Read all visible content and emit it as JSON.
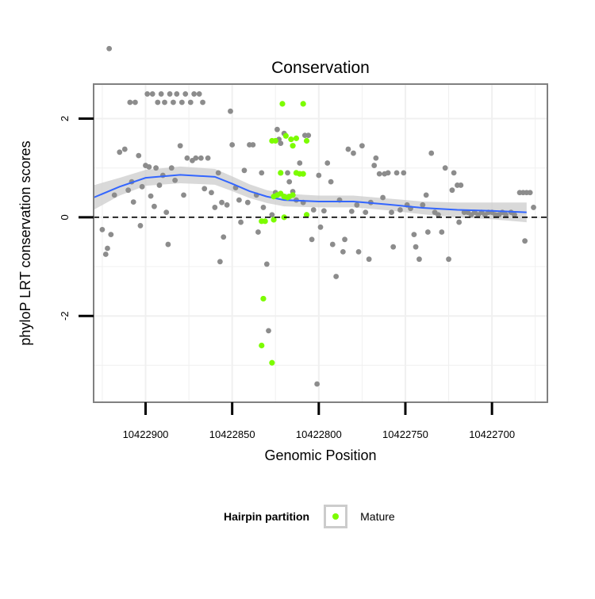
{
  "chart_data": {
    "type": "scatter",
    "title": "Conservation",
    "xlabel": "Genomic Position",
    "ylabel": "phyloP LRT conservation scores",
    "x_reversed": true,
    "xlim": [
      10422668,
      10422930
    ],
    "ylim": [
      -3.75,
      2.7
    ],
    "xticks": [
      10422900,
      10422850,
      10422800,
      10422750,
      10422700
    ],
    "xtick_labels": [
      "10422900",
      "10422850",
      "10422800",
      "10422750",
      "10422700"
    ],
    "yticks": [
      2,
      0,
      -2
    ],
    "ytick_labels": [
      "2",
      "0",
      "-2"
    ],
    "reference_line": {
      "y": 0,
      "style": "dashed"
    },
    "legend": {
      "title": "Hairpin partition",
      "entries": [
        {
          "label": "Mature",
          "color": "#7CFC00"
        }
      ],
      "placement": "bottom"
    },
    "colors": {
      "other": "#8c8c8c",
      "mature": "#7CFC00",
      "smooth": "#3366ff",
      "band": "#cccccc"
    },
    "series": [
      {
        "name": "Other",
        "points": [
          [
            10422925,
            -0.25
          ],
          [
            10422923,
            -0.75
          ],
          [
            10422922,
            -0.63
          ],
          [
            10422920,
            -0.35
          ],
          [
            10422918,
            0.45
          ],
          [
            10422921,
            3.42
          ],
          [
            10422915,
            1.32
          ],
          [
            10422912,
            1.38
          ],
          [
            10422910,
            0.55
          ],
          [
            10422908,
            0.72
          ],
          [
            10422907,
            0.31
          ],
          [
            10422909,
            2.33
          ],
          [
            10422906,
            2.33
          ],
          [
            10422904,
            1.25
          ],
          [
            10422902,
            0.62
          ],
          [
            10422900,
            1.05
          ],
          [
            10422898,
            1.02
          ],
          [
            10422897,
            0.43
          ],
          [
            10422895,
            0.22
          ],
          [
            10422903,
            -0.17
          ],
          [
            10422899,
            2.5
          ],
          [
            10422896,
            2.5
          ],
          [
            10422893,
            2.33
          ],
          [
            10422891,
            2.5
          ],
          [
            10422889,
            2.33
          ],
          [
            10422886,
            2.5
          ],
          [
            10422884,
            2.33
          ],
          [
            10422882,
            2.5
          ],
          [
            10422879,
            2.33
          ],
          [
            10422877,
            2.5
          ],
          [
            10422874,
            2.33
          ],
          [
            10422872,
            2.5
          ],
          [
            10422869,
            2.5
          ],
          [
            10422867,
            2.33
          ],
          [
            10422894,
            1.0
          ],
          [
            10422892,
            0.65
          ],
          [
            10422890,
            0.85
          ],
          [
            10422888,
            0.1
          ],
          [
            10422887,
            -0.55
          ],
          [
            10422885,
            1.0
          ],
          [
            10422883,
            0.75
          ],
          [
            10422880,
            1.45
          ],
          [
            10422878,
            0.45
          ],
          [
            10422876,
            1.2
          ],
          [
            10422873,
            1.15
          ],
          [
            10422871,
            1.2
          ],
          [
            10422868,
            1.2
          ],
          [
            10422866,
            0.58
          ],
          [
            10422864,
            1.2
          ],
          [
            10422862,
            0.5
          ],
          [
            10422860,
            0.2
          ],
          [
            10422858,
            0.9
          ],
          [
            10422857,
            -0.9
          ],
          [
            10422856,
            0.3
          ],
          [
            10422855,
            -0.4
          ],
          [
            10422853,
            0.25
          ],
          [
            10422851,
            2.15
          ],
          [
            10422850,
            1.47
          ],
          [
            10422848,
            0.6
          ],
          [
            10422846,
            0.35
          ],
          [
            10422845,
            -0.1
          ],
          [
            10422843,
            0.95
          ],
          [
            10422841,
            0.3
          ],
          [
            10422840,
            1.47
          ],
          [
            10422838,
            1.47
          ],
          [
            10422836,
            0.45
          ],
          [
            10422835,
            -0.3
          ],
          [
            10422833,
            0.9
          ],
          [
            10422832,
            0.2
          ],
          [
            10422830,
            -0.95
          ],
          [
            10422829,
            -2.3
          ],
          [
            10422827,
            0.05
          ],
          [
            10422825,
            0.5
          ],
          [
            10422824,
            1.78
          ],
          [
            10422823,
            1.58
          ],
          [
            10422822,
            1.5
          ],
          [
            10422820,
            1.7
          ],
          [
            10422818,
            0.9
          ],
          [
            10422817,
            0.72
          ],
          [
            10422815,
            0.52
          ],
          [
            10422813,
            0.35
          ],
          [
            10422811,
            1.1
          ],
          [
            10422809,
            0.3
          ],
          [
            10422808,
            1.66
          ],
          [
            10422806,
            1.66
          ],
          [
            10422804,
            -0.45
          ],
          [
            10422803,
            0.15
          ],
          [
            10422801,
            -3.38
          ],
          [
            10422800,
            0.85
          ],
          [
            10422799,
            -0.2
          ],
          [
            10422797,
            0.13
          ],
          [
            10422795,
            1.1
          ],
          [
            10422793,
            0.72
          ],
          [
            10422792,
            -0.55
          ],
          [
            10422790,
            -1.2
          ],
          [
            10422788,
            0.35
          ],
          [
            10422786,
            -0.7
          ],
          [
            10422785,
            -0.45
          ],
          [
            10422783,
            1.38
          ],
          [
            10422781,
            0.12
          ],
          [
            10422780,
            1.3
          ],
          [
            10422778,
            0.25
          ],
          [
            10422777,
            -0.7
          ],
          [
            10422775,
            1.45
          ],
          [
            10422773,
            0.1
          ],
          [
            10422771,
            -0.85
          ],
          [
            10422770,
            0.3
          ],
          [
            10422768,
            1.05
          ],
          [
            10422767,
            1.2
          ],
          [
            10422765,
            0.88
          ],
          [
            10422763,
            0.4
          ],
          [
            10422762,
            0.88
          ],
          [
            10422760,
            0.9
          ],
          [
            10422758,
            0.1
          ],
          [
            10422757,
            -0.6
          ],
          [
            10422755,
            0.9
          ],
          [
            10422753,
            0.15
          ],
          [
            10422751,
            0.9
          ],
          [
            10422749,
            0.25
          ],
          [
            10422747,
            0.18
          ],
          [
            10422745,
            -0.35
          ],
          [
            10422744,
            -0.6
          ],
          [
            10422742,
            -0.85
          ],
          [
            10422740,
            0.25
          ],
          [
            10422738,
            0.45
          ],
          [
            10422737,
            -0.3
          ],
          [
            10422735,
            1.3
          ],
          [
            10422733,
            0.1
          ],
          [
            10422731,
            0.05
          ],
          [
            10422729,
            -0.3
          ],
          [
            10422727,
            1.0
          ],
          [
            10422725,
            -0.85
          ],
          [
            10422723,
            0.55
          ],
          [
            10422722,
            0.9
          ],
          [
            10422720,
            0.65
          ],
          [
            10422718,
            0.65
          ],
          [
            10422716,
            0.1
          ],
          [
            10422714,
            0.1
          ],
          [
            10422712,
            0.05
          ],
          [
            10422710,
            0.1
          ],
          [
            10422708,
            0.05
          ],
          [
            10422706,
            0.1
          ],
          [
            10422704,
            0.05
          ],
          [
            10422702,
            0.1
          ],
          [
            10422700,
            0.1
          ],
          [
            10422698,
            0.05
          ],
          [
            10422696,
            0.05
          ],
          [
            10422694,
            0.1
          ],
          [
            10422692,
            0.05
          ],
          [
            10422689,
            0.1
          ],
          [
            10422687,
            0.05
          ],
          [
            10422684,
            0.5
          ],
          [
            10422682,
            0.5
          ],
          [
            10422680,
            0.5
          ],
          [
            10422681,
            -0.48
          ],
          [
            10422678,
            0.5
          ],
          [
            10422676,
            0.2
          ],
          [
            10422719,
            -0.1
          ]
        ]
      },
      {
        "name": "Mature",
        "points": [
          [
            10422821,
            2.3
          ],
          [
            10422809,
            2.3
          ],
          [
            10422827,
            1.55
          ],
          [
            10422825,
            1.55
          ],
          [
            10422819,
            1.65
          ],
          [
            10422816,
            1.58
          ],
          [
            10422813,
            1.6
          ],
          [
            10422815,
            1.45
          ],
          [
            10422807,
            1.55
          ],
          [
            10422822,
            0.9
          ],
          [
            10422813,
            0.9
          ],
          [
            10422811,
            0.88
          ],
          [
            10422809,
            0.88
          ],
          [
            10422826,
            0.42
          ],
          [
            10422824,
            0.45
          ],
          [
            10422822,
            0.48
          ],
          [
            10422820,
            0.42
          ],
          [
            10422818,
            0.4
          ],
          [
            10422817,
            0.42
          ],
          [
            10422815,
            0.45
          ],
          [
            10422807,
            0.05
          ],
          [
            10422833,
            -0.08
          ],
          [
            10422831,
            -0.08
          ],
          [
            10422826,
            -0.05
          ],
          [
            10422820,
            0.0
          ],
          [
            10422832,
            -1.65
          ],
          [
            10422833,
            -2.6
          ],
          [
            10422827,
            -2.95
          ]
        ]
      },
      {
        "name": "Smooth",
        "points": [
          [
            10422930,
            0.4
          ],
          [
            10422915,
            0.62
          ],
          [
            10422900,
            0.8
          ],
          [
            10422880,
            0.86
          ],
          [
            10422860,
            0.82
          ],
          [
            10422850,
            0.68
          ],
          [
            10422840,
            0.53
          ],
          [
            10422830,
            0.42
          ],
          [
            10422820,
            0.35
          ],
          [
            10422800,
            0.32
          ],
          [
            10422780,
            0.32
          ],
          [
            10422760,
            0.26
          ],
          [
            10422740,
            0.19
          ],
          [
            10422720,
            0.15
          ],
          [
            10422700,
            0.13
          ],
          [
            10422680,
            0.1
          ]
        ]
      }
    ],
    "band_halfwidth": [
      0.25,
      0.18,
      0.16,
      0.17,
      0.16,
      0.15,
      0.14,
      0.13,
      0.13,
      0.12,
      0.12,
      0.12,
      0.13,
      0.15,
      0.17,
      0.2
    ]
  }
}
